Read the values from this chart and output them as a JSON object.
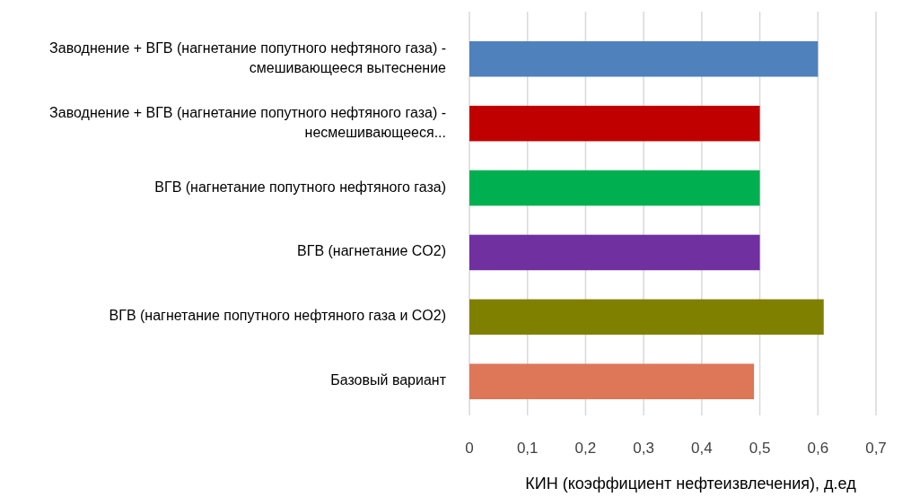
{
  "chart_data": {
    "type": "bar",
    "orientation": "horizontal",
    "xlabel": "КИН (коэффициент нефтеизвлечения), д.ед",
    "categories": [
      "Заводнение + ВГВ (нагнетание попутного нефтяного газа)  - смешивающееся вытеснение",
      "Заводнение + ВГВ (нагнетание попутного нефтяного газа) - несмешивающееся...",
      "ВГВ (нагнетание попутного нефтяного газа)",
      "ВГВ (нагнетание CO2)",
      "ВГВ (нагнетание попутного нефтяного газа и CO2)",
      "Базовый вариант"
    ],
    "values": [
      0.6,
      0.5,
      0.5,
      0.5,
      0.61,
      0.49
    ],
    "colors": [
      "#4f81bd",
      "#c00000",
      "#00b050",
      "#7030a0",
      "#808000",
      "#dd7758"
    ],
    "xlim": [
      0,
      0.7
    ],
    "xticks": [
      {
        "value": 0,
        "label": "0"
      },
      {
        "value": 0.1,
        "label": "0,1"
      },
      {
        "value": 0.2,
        "label": "0,2"
      },
      {
        "value": 0.3,
        "label": "0,3"
      },
      {
        "value": 0.4,
        "label": "0,4"
      },
      {
        "value": 0.5,
        "label": "0,5"
      },
      {
        "value": 0.6,
        "label": "0,6"
      },
      {
        "value": 0.7,
        "label": "0,7"
      }
    ],
    "grid": "x"
  }
}
